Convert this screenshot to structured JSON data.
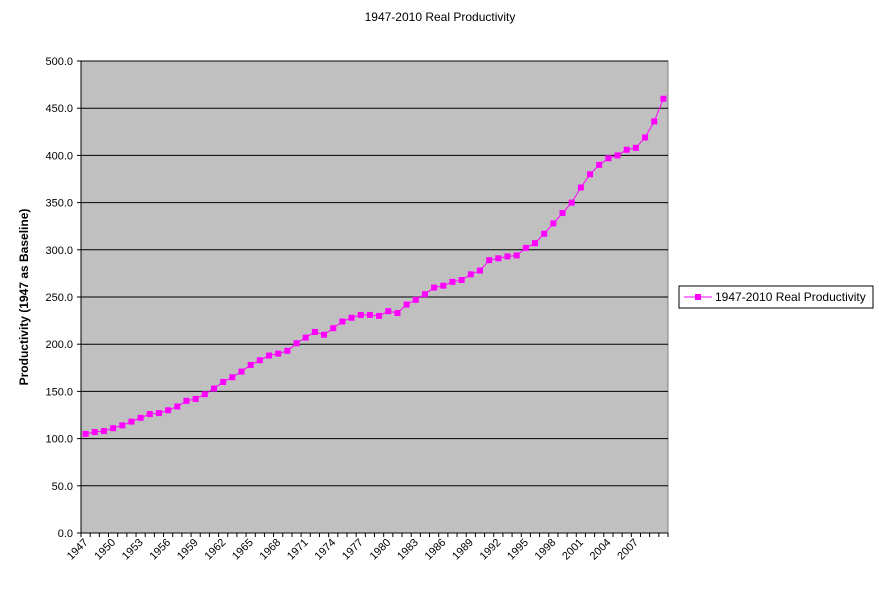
{
  "chart_data": {
    "type": "line",
    "title": "1947-2010 Real Productivity",
    "ylabel": "Productivity (1947 as Baseline)",
    "xlabel": "",
    "ylim": [
      0,
      500
    ],
    "y_ticks": [
      "0.0",
      "50.0",
      "100.0",
      "150.0",
      "200.0",
      "250.0",
      "300.0",
      "350.0",
      "400.0",
      "450.0",
      "500.0"
    ],
    "x": [
      1947,
      1948,
      1949,
      1950,
      1951,
      1952,
      1953,
      1954,
      1955,
      1956,
      1957,
      1958,
      1959,
      1960,
      1961,
      1962,
      1963,
      1964,
      1965,
      1966,
      1967,
      1968,
      1969,
      1970,
      1971,
      1972,
      1973,
      1974,
      1975,
      1976,
      1977,
      1978,
      1979,
      1980,
      1981,
      1982,
      1983,
      1984,
      1985,
      1986,
      1987,
      1988,
      1989,
      1990,
      1991,
      1992,
      1993,
      1994,
      1995,
      1996,
      1997,
      1998,
      1999,
      2000,
      2001,
      2002,
      2003,
      2004,
      2005,
      2006,
      2007,
      2008,
      2009,
      2010
    ],
    "x_tick_labels": [
      "1947",
      "1950",
      "1953",
      "1956",
      "1959",
      "1962",
      "1965",
      "1968",
      "1971",
      "1974",
      "1977",
      "1980",
      "1983",
      "1986",
      "1989",
      "1992",
      "1995",
      "1998",
      "2001",
      "2004",
      "2007"
    ],
    "grid": true,
    "legend_position": "right",
    "colors": {
      "series": "#ff00ff",
      "plot_bg": "#c0c0c0",
      "grid": "#000000"
    },
    "series": [
      {
        "name": "1947-2010 Real Productivity",
        "values": [
          105,
          107,
          108,
          111,
          114,
          118,
          122,
          126,
          127,
          130,
          134,
          140,
          142,
          147,
          153,
          160,
          165,
          171,
          178,
          183,
          188,
          190,
          193,
          201,
          207,
          213,
          210,
          217,
          224,
          228,
          231,
          231,
          230,
          235,
          233,
          242,
          247,
          253,
          260,
          262,
          266,
          268,
          274,
          278,
          289,
          291,
          293,
          294,
          302,
          307,
          317,
          328,
          339,
          350,
          366,
          380,
          390,
          397,
          400,
          406,
          408,
          419,
          436,
          460
        ]
      }
    ]
  }
}
